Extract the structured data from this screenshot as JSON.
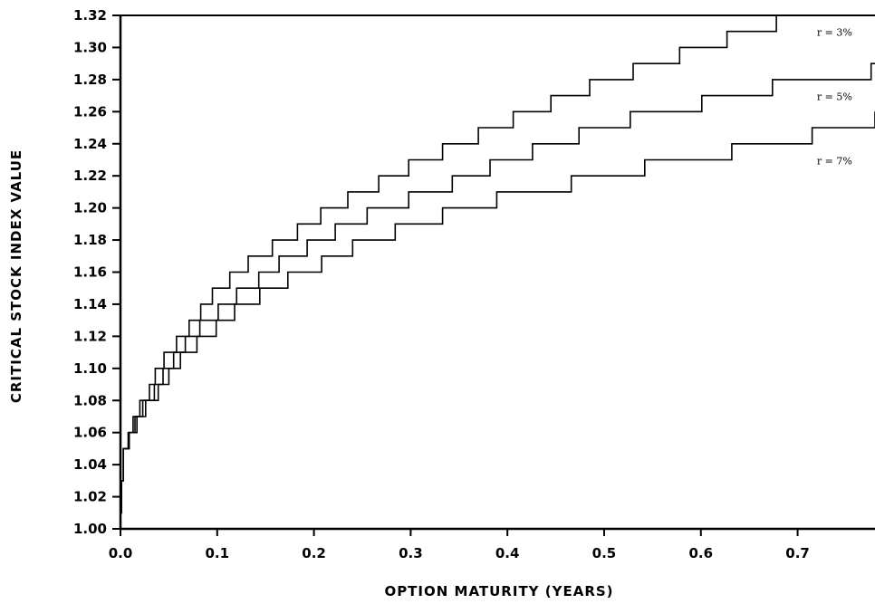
{
  "chart_data": {
    "type": "line",
    "title": "",
    "xlabel": "OPTION MATURITY (YEARS)",
    "ylabel": "CRITICAL STOCK INDEX VALUE",
    "xlim": [
      0,
      0.78
    ],
    "ylim": [
      1.0,
      1.32
    ],
    "x_ticks": [
      "0.0",
      "0.1",
      "0.2",
      "0.3",
      "0.4",
      "0.5",
      "0.6",
      "0.7"
    ],
    "x_tick_values": [
      0,
      0.1,
      0.2,
      0.3,
      0.4,
      0.5,
      0.6,
      0.7
    ],
    "y_ticks": [
      "1.00",
      "1.02",
      "1.04",
      "1.06",
      "1.08",
      "1.10",
      "1.12",
      "1.14",
      "1.16",
      "1.18",
      "1.20",
      "1.22",
      "1.24",
      "1.26",
      "1.28",
      "1.30",
      "1.32"
    ],
    "y_tick_values": [
      1.0,
      1.02,
      1.04,
      1.06,
      1.08,
      1.1,
      1.12,
      1.14,
      1.16,
      1.18,
      1.2,
      1.22,
      1.24,
      1.26,
      1.28,
      1.3,
      1.32
    ],
    "grid": false,
    "series": [
      {
        "name": "r = 3%",
        "label_x": 0.72,
        "label_y": 1.305,
        "steps": [
          [
            0.0,
            1.01
          ],
          [
            0.001,
            1.03
          ],
          [
            0.003,
            1.05
          ],
          [
            0.008,
            1.06
          ],
          [
            0.013,
            1.07
          ],
          [
            0.02,
            1.08
          ],
          [
            0.03,
            1.09
          ],
          [
            0.036,
            1.1
          ],
          [
            0.045,
            1.11
          ],
          [
            0.058,
            1.12
          ],
          [
            0.071,
            1.13
          ],
          [
            0.083,
            1.14
          ],
          [
            0.095,
            1.15
          ],
          [
            0.113,
            1.16
          ],
          [
            0.132,
            1.17
          ],
          [
            0.157,
            1.18
          ],
          [
            0.183,
            1.19
          ],
          [
            0.207,
            1.2
          ],
          [
            0.235,
            1.21
          ],
          [
            0.267,
            1.22
          ],
          [
            0.298,
            1.23
          ],
          [
            0.333,
            1.24
          ],
          [
            0.37,
            1.25
          ],
          [
            0.406,
            1.26
          ],
          [
            0.445,
            1.27
          ],
          [
            0.485,
            1.28
          ],
          [
            0.53,
            1.29
          ],
          [
            0.578,
            1.3
          ],
          [
            0.627,
            1.31
          ],
          [
            0.678,
            1.32
          ]
        ],
        "x_end": 0.78
      },
      {
        "name": "r = 5%",
        "label_x": 0.72,
        "label_y": 1.265,
        "steps": [
          [
            0.0,
            1.01
          ],
          [
            0.001,
            1.03
          ],
          [
            0.003,
            1.05
          ],
          [
            0.009,
            1.06
          ],
          [
            0.015,
            1.07
          ],
          [
            0.023,
            1.08
          ],
          [
            0.035,
            1.09
          ],
          [
            0.044,
            1.1
          ],
          [
            0.055,
            1.11
          ],
          [
            0.067,
            1.12
          ],
          [
            0.082,
            1.13
          ],
          [
            0.101,
            1.14
          ],
          [
            0.12,
            1.15
          ],
          [
            0.143,
            1.16
          ],
          [
            0.164,
            1.17
          ],
          [
            0.193,
            1.18
          ],
          [
            0.222,
            1.19
          ],
          [
            0.255,
            1.2
          ],
          [
            0.298,
            1.21
          ],
          [
            0.343,
            1.22
          ],
          [
            0.382,
            1.23
          ],
          [
            0.426,
            1.24
          ],
          [
            0.474,
            1.25
          ],
          [
            0.527,
            1.26
          ],
          [
            0.601,
            1.27
          ],
          [
            0.674,
            1.28
          ],
          [
            0.776,
            1.29
          ]
        ],
        "x_end": 0.78
      },
      {
        "name": "r = 7%",
        "label_x": 0.72,
        "label_y": 1.225,
        "steps": [
          [
            0.0,
            1.01
          ],
          [
            0.001,
            1.03
          ],
          [
            0.003,
            1.05
          ],
          [
            0.009,
            1.06
          ],
          [
            0.017,
            1.07
          ],
          [
            0.026,
            1.08
          ],
          [
            0.039,
            1.09
          ],
          [
            0.05,
            1.1
          ],
          [
            0.062,
            1.11
          ],
          [
            0.079,
            1.12
          ],
          [
            0.099,
            1.13
          ],
          [
            0.118,
            1.14
          ],
          [
            0.144,
            1.15
          ],
          [
            0.173,
            1.16
          ],
          [
            0.208,
            1.17
          ],
          [
            0.24,
            1.18
          ],
          [
            0.284,
            1.19
          ],
          [
            0.333,
            1.2
          ],
          [
            0.389,
            1.21
          ],
          [
            0.466,
            1.22
          ],
          [
            0.542,
            1.23
          ],
          [
            0.632,
            1.24
          ],
          [
            0.715,
            1.25
          ],
          [
            0.78,
            1.26
          ]
        ],
        "x_end": 0.78
      }
    ]
  }
}
